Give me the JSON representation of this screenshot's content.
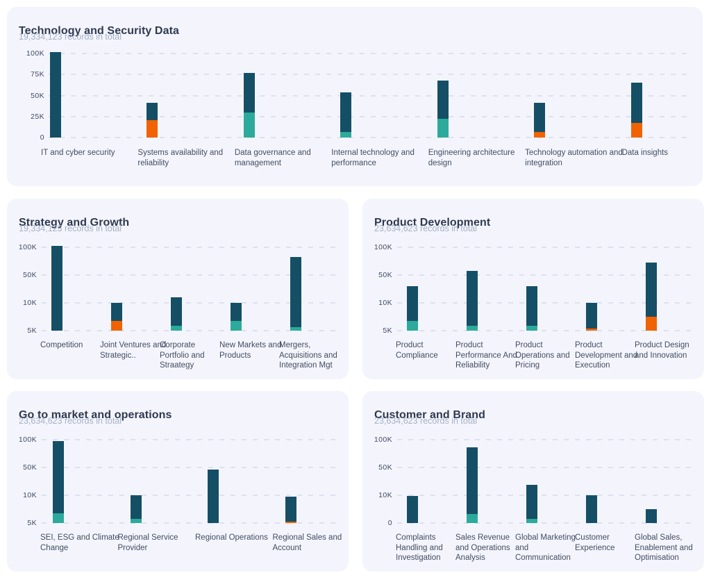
{
  "colors": {
    "dark": "#154f66",
    "green": "#2caa9b",
    "orange": "#f06202",
    "panel_background": "#f4f5fc",
    "gridline": "#dde1ee",
    "title_text": "#2e3950",
    "subtitle_text": "#a6b1c7",
    "axis_text": "#3d4a63"
  },
  "chart_data": [
    {
      "type": "bar",
      "stacked": true,
      "grid": "dashed-horizontal",
      "legend": "none",
      "title": "Technology and Security Data",
      "subtitle": "19,334,123 records in total",
      "yticks": [
        {
          "label": "0",
          "value": 0
        },
        {
          "label": "25K",
          "value": 25000
        },
        {
          "label": "50K",
          "value": 50000
        },
        {
          "label": "75K",
          "value": 75000
        },
        {
          "label": "100K",
          "value": 100000
        }
      ],
      "bars": [
        {
          "label": "IT and cyber security",
          "segments": [
            {
              "color": "dark",
              "top": 102000
            }
          ]
        },
        {
          "label": "Systems availability and reliability",
          "segments": [
            {
              "color": "orange",
              "top": 21000
            },
            {
              "color": "dark",
              "top": 41000
            }
          ]
        },
        {
          "label": "Data governance and management",
          "segments": [
            {
              "color": "green",
              "top": 30000
            },
            {
              "color": "dark",
              "top": 77000
            }
          ]
        },
        {
          "label": "Internal technology and performance",
          "segments": [
            {
              "color": "green",
              "top": 7000
            },
            {
              "color": "dark",
              "top": 54000
            }
          ]
        },
        {
          "label": "Engineering architecture design",
          "segments": [
            {
              "color": "green",
              "top": 22000
            },
            {
              "color": "dark",
              "top": 68000
            }
          ]
        },
        {
          "label": "Technology automation and integration",
          "segments": [
            {
              "color": "orange",
              "top": 7000
            },
            {
              "color": "dark",
              "top": 41000
            }
          ]
        },
        {
          "label": "Data insights",
          "segments": [
            {
              "color": "orange",
              "top": 17000
            },
            {
              "color": "dark",
              "top": 65000
            }
          ]
        }
      ]
    },
    {
      "type": "bar",
      "stacked": true,
      "grid": "dashed-horizontal",
      "legend": "none",
      "title": "Strategy and Growth",
      "subtitle": "19,334,123 records in total",
      "yticks": [
        {
          "label": "5K",
          "value": 5000
        },
        {
          "label": "10K",
          "value": 10000
        },
        {
          "label": "50K",
          "value": 50000
        },
        {
          "label": "100K",
          "value": 100000
        }
      ],
      "bars": [
        {
          "label": "Competition",
          "segments": [
            {
              "color": "dark",
              "top": 103000
            }
          ]
        },
        {
          "label": "Joint Ventures and Strategic..",
          "segments": [
            {
              "color": "orange",
              "top": 6800
            },
            {
              "color": "dark",
              "top": 10000
            }
          ]
        },
        {
          "label": "Corporate Portfolio and Straategy",
          "segments": [
            {
              "color": "green",
              "top": 5900
            },
            {
              "color": "dark",
              "top": 18000
            }
          ]
        },
        {
          "label": "New Markets and Products",
          "segments": [
            {
              "color": "green",
              "top": 6700
            },
            {
              "color": "dark",
              "top": 10300
            }
          ]
        },
        {
          "label": "Mergers, Acquisitions and Integration Mgt",
          "segments": [
            {
              "color": "green",
              "top": 5600
            },
            {
              "color": "dark",
              "top": 83000
            }
          ]
        }
      ]
    },
    {
      "type": "bar",
      "stacked": true,
      "grid": "dashed-horizontal",
      "legend": "none",
      "title": "Product Development",
      "subtitle": "23,634,623 records in total",
      "yticks": [
        {
          "label": "5K",
          "value": 5000
        },
        {
          "label": "10K",
          "value": 10000
        },
        {
          "label": "50K",
          "value": 50000
        },
        {
          "label": "100K",
          "value": 100000
        }
      ],
      "bars": [
        {
          "label": "Product Compliance",
          "segments": [
            {
              "color": "green",
              "top": 6800
            },
            {
              "color": "dark",
              "top": 34000
            }
          ]
        },
        {
          "label": "Product Performance And Reliability",
          "segments": [
            {
              "color": "green",
              "top": 5900
            },
            {
              "color": "dark",
              "top": 57000
            }
          ]
        },
        {
          "label": "Product Operations and Pricing",
          "segments": [
            {
              "color": "green",
              "top": 5900
            },
            {
              "color": "dark",
              "top": 34000
            }
          ]
        },
        {
          "label": "Product Development and Execution",
          "segments": [
            {
              "color": "orange",
              "top": 5400
            },
            {
              "color": "dark",
              "top": 10000
            }
          ]
        },
        {
          "label": "Product Design and Innovation",
          "segments": [
            {
              "color": "orange",
              "top": 7500
            },
            {
              "color": "dark",
              "top": 72000
            }
          ]
        }
      ]
    },
    {
      "type": "bar",
      "stacked": true,
      "grid": "dashed-horizontal",
      "legend": "none",
      "title": "Go to market and operations",
      "subtitle": "23,634,623 records in total",
      "yticks": [
        {
          "label": "5K",
          "value": 5000
        },
        {
          "label": "10K",
          "value": 10000
        },
        {
          "label": "50K",
          "value": 50000
        },
        {
          "label": "100K",
          "value": 100000
        }
      ],
      "bars": [
        {
          "label": "SEI, ESG and Climate Change",
          "segments": [
            {
              "color": "green",
              "top": 6700
            },
            {
              "color": "dark",
              "top": 98000
            }
          ]
        },
        {
          "label": "Regional Service Provider",
          "segments": [
            {
              "color": "green",
              "top": 5800
            },
            {
              "color": "dark",
              "top": 10000
            }
          ]
        },
        {
          "label": "Regional Operations",
          "segments": [
            {
              "color": "dark",
              "top": 47000
            }
          ]
        },
        {
          "label": "Regional Sales and Account",
          "segments": [
            {
              "color": "orange",
              "top": 5300
            },
            {
              "color": "dark",
              "top": 9800
            }
          ]
        }
      ]
    },
    {
      "type": "bar",
      "stacked": true,
      "grid": "dashed-horizontal",
      "legend": "none",
      "title": "Customer and Brand",
      "subtitle": "23,634,623 records in total",
      "yticks": [
        {
          "label": "0",
          "value": 0
        },
        {
          "label": "10K",
          "value": 10000
        },
        {
          "label": "50K",
          "value": 50000
        },
        {
          "label": "100K",
          "value": 100000
        }
      ],
      "bars": [
        {
          "label": "Complaints Handling and Investigation",
          "segments": [
            {
              "color": "dark",
              "top": 9700
            }
          ]
        },
        {
          "label": "Sales Revenue and Operations Analysis",
          "segments": [
            {
              "color": "green",
              "top": 3300
            },
            {
              "color": "dark",
              "top": 86000
            }
          ]
        },
        {
          "label": "Global Marketing and Communication",
          "segments": [
            {
              "color": "green",
              "top": 1600
            },
            {
              "color": "dark",
              "top": 25000
            }
          ]
        },
        {
          "label": "Customer Experience",
          "segments": [
            {
              "color": "dark",
              "top": 10000
            }
          ]
        },
        {
          "label": "Global Sales, Enablement and Optimisation",
          "segments": [
            {
              "color": "dark",
              "top": 5000
            }
          ]
        }
      ]
    }
  ]
}
